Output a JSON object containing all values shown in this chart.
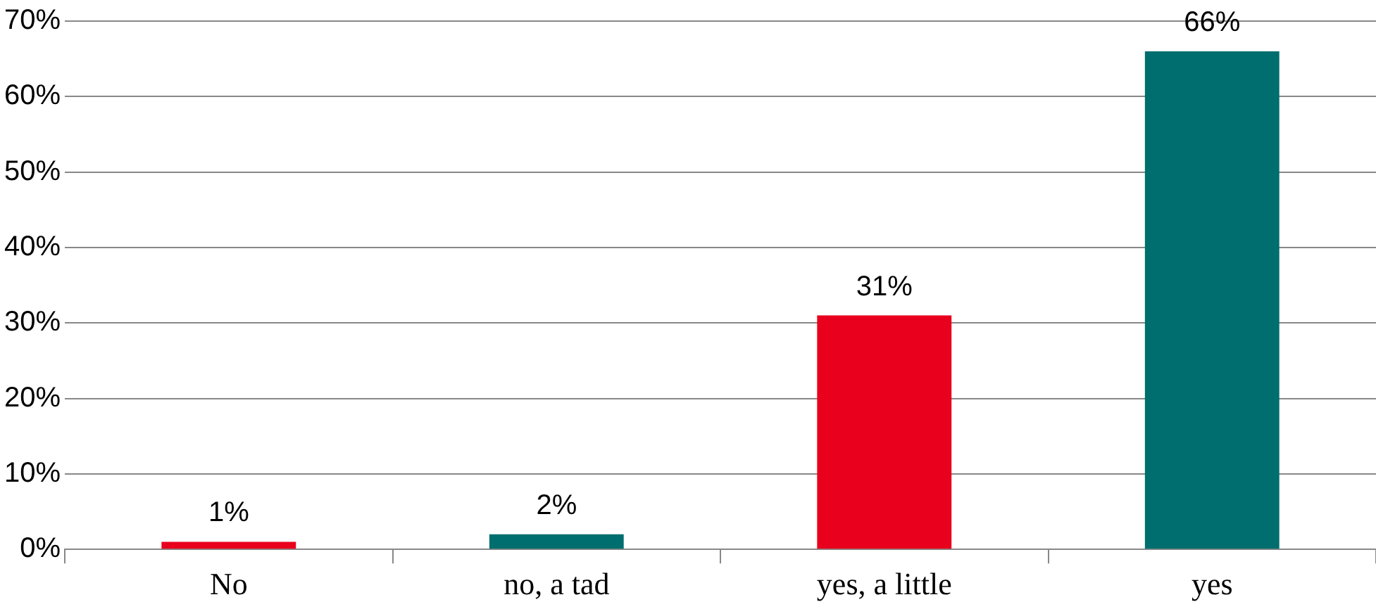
{
  "chart_data": {
    "type": "bar",
    "categories": [
      "No",
      "no, a tad",
      "yes, a little",
      "yes"
    ],
    "values": [
      1,
      2,
      31,
      66
    ],
    "colors": [
      "#e8001c",
      "#006e6e",
      "#e8001c",
      "#006e6e"
    ],
    "value_labels": [
      "1%",
      "2%",
      "31%",
      "66%"
    ],
    "ylim": [
      0,
      70
    ],
    "yticks": [
      {
        "value": 0,
        "label": "0%"
      },
      {
        "value": 10,
        "label": "10%"
      },
      {
        "value": 20,
        "label": "20%"
      },
      {
        "value": 30,
        "label": "30%"
      },
      {
        "value": 40,
        "label": "40%"
      },
      {
        "value": 50,
        "label": "50%"
      },
      {
        "value": 60,
        "label": "60%"
      },
      {
        "value": 70,
        "label": "70%"
      }
    ],
    "grid": "y",
    "legend": false
  }
}
